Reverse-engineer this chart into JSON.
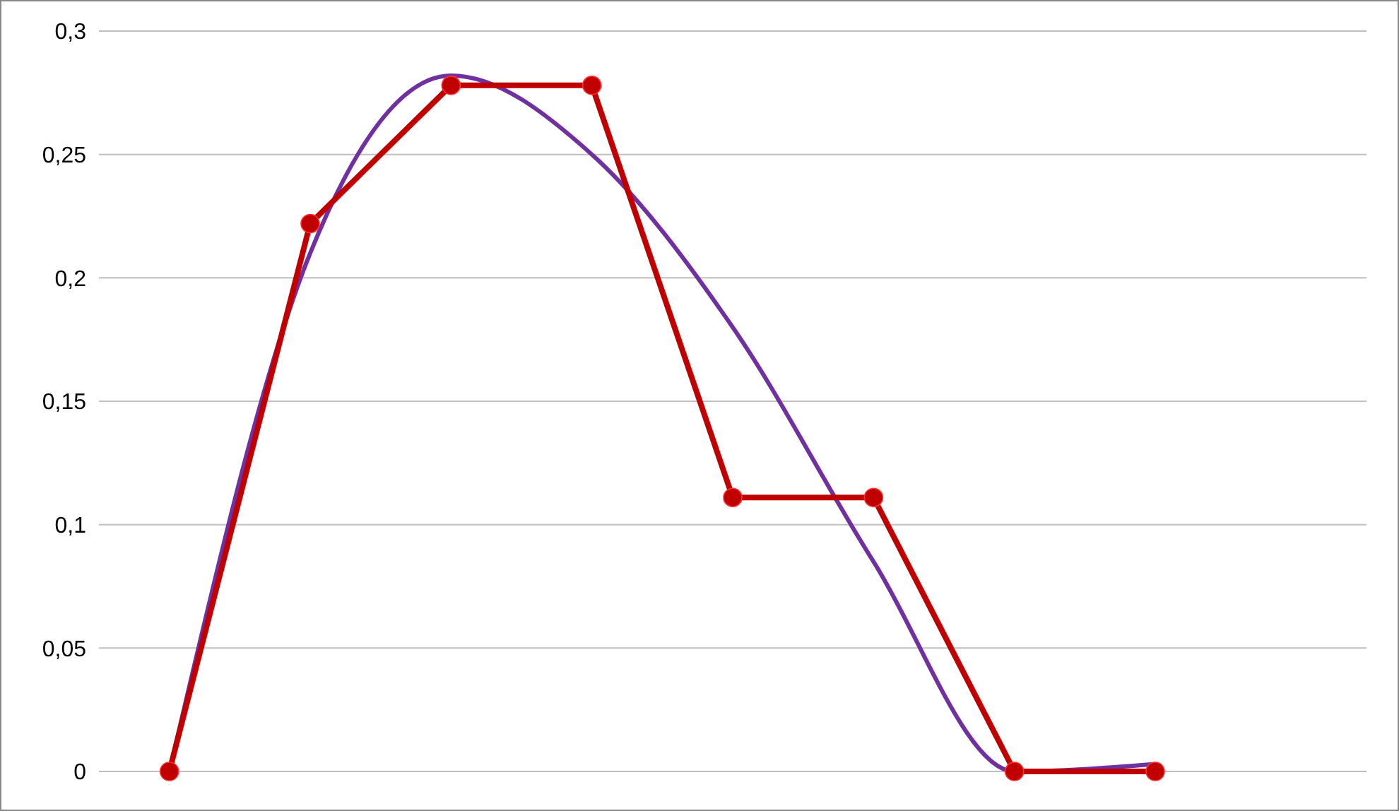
{
  "chart_data": {
    "type": "line",
    "categories": [
      null,
      null,
      null,
      null,
      null,
      null,
      null,
      null,
      null
    ],
    "ylim": [
      0,
      0.3
    ],
    "yticks": [
      {
        "value": 0,
        "label": "0"
      },
      {
        "value": 0.05,
        "label": "0,05"
      },
      {
        "value": 0.1,
        "label": "0,1"
      },
      {
        "value": 0.15,
        "label": "0,15"
      },
      {
        "value": 0.2,
        "label": "0,2"
      },
      {
        "value": 0.25,
        "label": "0,25"
      },
      {
        "value": 0.3,
        "label": "0,3"
      }
    ],
    "grid": "y",
    "tick_labels": "y",
    "series": [
      {
        "color": "#c00000",
        "marker": "circle",
        "values": [
          0,
          0.222,
          0.278,
          0.278,
          0.111,
          0.111,
          0,
          0,
          null
        ]
      },
      {
        "color": "#7030a0",
        "marker": "none",
        "values": [
          0,
          0.21,
          0.282,
          0.25,
          0.18,
          0.085,
          0,
          0.003,
          null
        ]
      }
    ]
  }
}
